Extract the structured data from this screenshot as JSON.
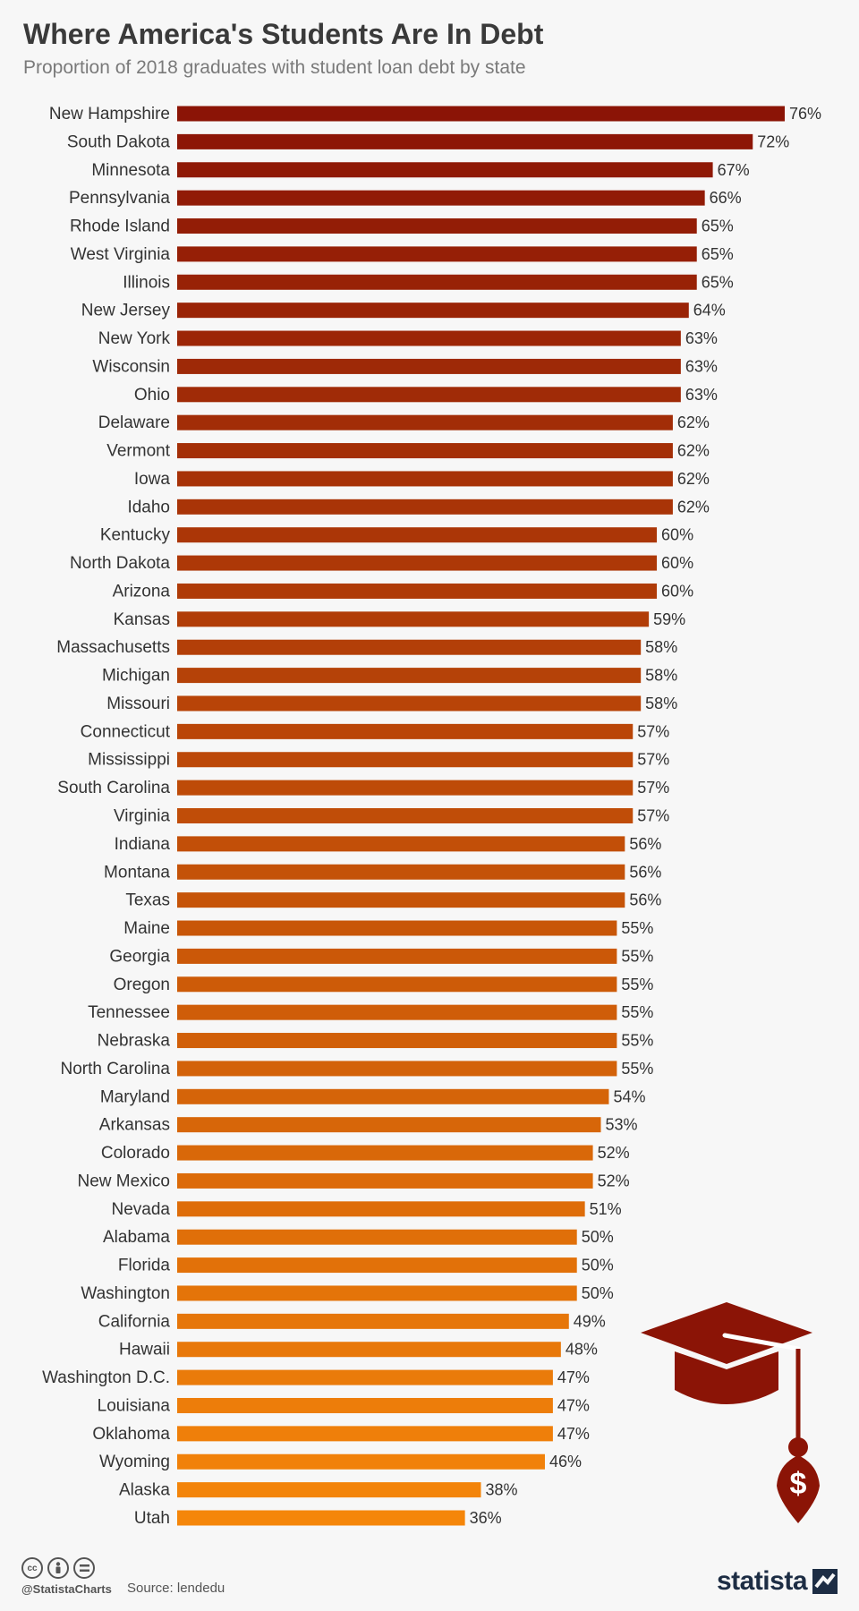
{
  "header": {
    "title": "Where America's Students Are In Debt",
    "subtitle": "Proportion of 2018 graduates with student loan debt by state"
  },
  "footer": {
    "handle": "@StatistaCharts",
    "source": "Source: lendedu",
    "brand": "statista",
    "license_icons": [
      "cc",
      "by",
      "nd"
    ]
  },
  "colors": {
    "bar_top": "#8b1406",
    "bar_bottom": "#f5860a",
    "icon": "#8b1406"
  },
  "icons": {
    "graduation_cap": "graduation-cap-icon",
    "dollar_tassel": "dollar-sign-icon"
  },
  "chart_data": {
    "type": "bar",
    "orientation": "horizontal",
    "title": "Where America's Students Are In Debt",
    "subtitle": "Proportion of 2018 graduates with student loan debt by state",
    "unit": "%",
    "xlim": [
      0,
      76
    ],
    "grid": false,
    "categories": [
      "New Hampshire",
      "South Dakota",
      "Minnesota",
      "Pennsylvania",
      "Rhode Island",
      "West Virginia",
      "Illinois",
      "New Jersey",
      "New York",
      "Wisconsin",
      "Ohio",
      "Delaware",
      "Vermont",
      "Iowa",
      "Idaho",
      "Kentucky",
      "North Dakota",
      "Arizona",
      "Kansas",
      "Massachusetts",
      "Michigan",
      "Missouri",
      "Connecticut",
      "Mississippi",
      "South Carolina",
      "Virginia",
      "Indiana",
      "Montana",
      "Texas",
      "Maine",
      "Georgia",
      "Oregon",
      "Tennessee",
      "Nebraska",
      "North Carolina",
      "Maryland",
      "Arkansas",
      "Colorado",
      "New Mexico",
      "Nevada",
      "Alabama",
      "Florida",
      "Washington",
      "California",
      "Hawaii",
      "Washington D.C.",
      "Louisiana",
      "Oklahoma",
      "Wyoming",
      "Alaska",
      "Utah"
    ],
    "values": [
      76,
      72,
      67,
      66,
      65,
      65,
      65,
      64,
      63,
      63,
      63,
      62,
      62,
      62,
      62,
      60,
      60,
      60,
      59,
      58,
      58,
      58,
      57,
      57,
      57,
      57,
      56,
      56,
      56,
      55,
      55,
      55,
      55,
      55,
      55,
      54,
      53,
      52,
      52,
      51,
      50,
      50,
      50,
      49,
      48,
      47,
      47,
      47,
      46,
      38,
      36
    ],
    "value_labels": [
      "76%",
      "72%",
      "67%",
      "66%",
      "65%",
      "65%",
      "65%",
      "64%",
      "63%",
      "63%",
      "63%",
      "62%",
      "62%",
      "62%",
      "62%",
      "60%",
      "60%",
      "60%",
      "59%",
      "58%",
      "58%",
      "58%",
      "57%",
      "57%",
      "57%",
      "57%",
      "56%",
      "56%",
      "56%",
      "55%",
      "55%",
      "55%",
      "55%",
      "55%",
      "55%",
      "54%",
      "53%",
      "52%",
      "52%",
      "51%",
      "50%",
      "50%",
      "50%",
      "49%",
      "48%",
      "47%",
      "47%",
      "47%",
      "46%",
      "38%",
      "36%"
    ]
  }
}
